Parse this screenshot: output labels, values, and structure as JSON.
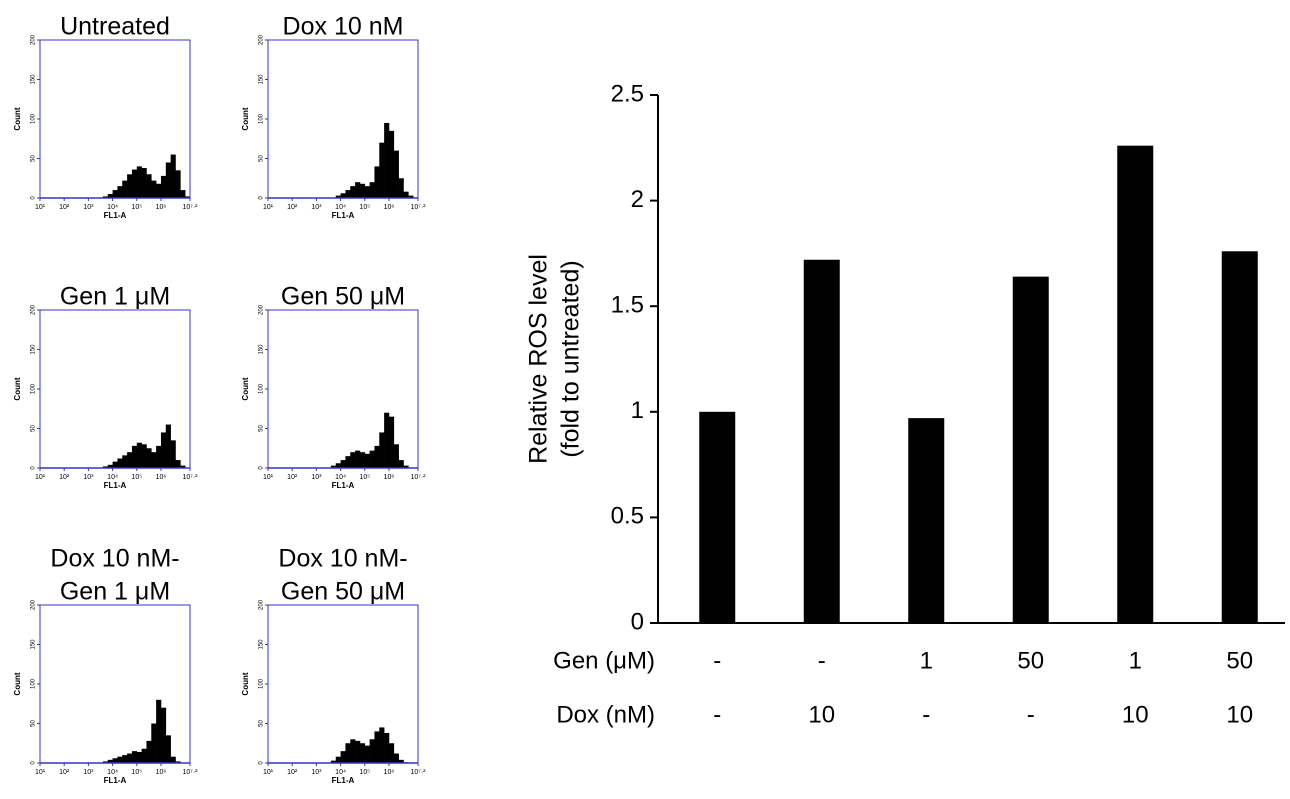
{
  "chart_data": [
    {
      "type": "histogram",
      "title": [
        "Untreated"
      ],
      "xlabel": "FL1-A",
      "ylabel": "Count",
      "bins": [
        1,
        1.2,
        1.4,
        1.6,
        1.8,
        2,
        2.2,
        2.4,
        2.6,
        2.8,
        3,
        3.2,
        3.4,
        3.6,
        3.8,
        4,
        4.2,
        4.4,
        4.6,
        4.8,
        5,
        5.2,
        5.4,
        5.6,
        5.8,
        6,
        6.2,
        6.4,
        6.6,
        6.8,
        7,
        7.2
      ],
      "values": [
        0,
        0,
        0,
        0,
        0,
        0,
        0,
        0,
        0,
        0,
        0,
        0,
        0,
        2,
        5,
        10,
        15,
        22,
        30,
        36,
        40,
        38,
        30,
        22,
        18,
        28,
        45,
        55,
        35,
        10,
        2
      ],
      "color": "#000000",
      "axis_color": "#3333cc",
      "xlim": [
        1,
        7.2
      ],
      "ylim": [
        0,
        200
      ],
      "yticks": [
        0,
        50,
        100,
        150,
        200
      ],
      "xticks": [
        {
          "value": 1,
          "label": "10¹"
        },
        {
          "value": 2,
          "label": "10²"
        },
        {
          "value": 3,
          "label": "10³"
        },
        {
          "value": 4,
          "label": "10⁴"
        },
        {
          "value": 5,
          "label": "10⁵"
        },
        {
          "value": 6,
          "label": "10⁶"
        },
        {
          "value": 7.2,
          "label": "10⁷·²"
        }
      ]
    },
    {
      "type": "histogram",
      "title": [
        "Dox 10 nM"
      ],
      "xlabel": "FL1-A",
      "ylabel": "Count",
      "bins": [
        1,
        1.2,
        1.4,
        1.6,
        1.8,
        2,
        2.2,
        2.4,
        2.6,
        2.8,
        3,
        3.2,
        3.4,
        3.6,
        3.8,
        4,
        4.2,
        4.4,
        4.6,
        4.8,
        5,
        5.2,
        5.4,
        5.6,
        5.8,
        6,
        6.2,
        6.4,
        6.6,
        6.8,
        7,
        7.2
      ],
      "values": [
        0,
        0,
        0,
        0,
        0,
        0,
        0,
        0,
        0,
        0,
        0,
        0,
        0,
        0,
        3,
        6,
        10,
        15,
        20,
        18,
        15,
        20,
        40,
        70,
        95,
        85,
        60,
        25,
        8,
        3,
        0
      ],
      "color": "#000000",
      "axis_color": "#3333cc",
      "xlim": [
        1,
        7.2
      ],
      "ylim": [
        0,
        200
      ],
      "yticks": [
        0,
        50,
        100,
        150,
        200
      ],
      "xticks": [
        {
          "value": 1,
          "label": "10¹"
        },
        {
          "value": 2,
          "label": "10²"
        },
        {
          "value": 3,
          "label": "10³"
        },
        {
          "value": 4,
          "label": "10⁴"
        },
        {
          "value": 5,
          "label": "10⁵"
        },
        {
          "value": 6,
          "label": "10⁶"
        },
        {
          "value": 7.2,
          "label": "10⁷·²"
        }
      ]
    },
    {
      "type": "histogram",
      "title": [
        "Gen 1 μM"
      ],
      "xlabel": "FL1-A",
      "ylabel": "Count",
      "bins": [
        1,
        1.2,
        1.4,
        1.6,
        1.8,
        2,
        2.2,
        2.4,
        2.6,
        2.8,
        3,
        3.2,
        3.4,
        3.6,
        3.8,
        4,
        4.2,
        4.4,
        4.6,
        4.8,
        5,
        5.2,
        5.4,
        5.6,
        5.8,
        6,
        6.2,
        6.4,
        6.6,
        6.8,
        7,
        7.2
      ],
      "values": [
        0,
        0,
        0,
        0,
        0,
        0,
        0,
        0,
        0,
        0,
        0,
        0,
        0,
        2,
        4,
        8,
        12,
        16,
        20,
        28,
        32,
        30,
        25,
        20,
        28,
        45,
        55,
        35,
        10,
        3,
        0
      ],
      "color": "#000000",
      "axis_color": "#3333cc",
      "xlim": [
        1,
        7.2
      ],
      "ylim": [
        0,
        200
      ],
      "yticks": [
        0,
        50,
        100,
        150,
        200
      ],
      "xticks": [
        {
          "value": 1,
          "label": "10¹"
        },
        {
          "value": 2,
          "label": "10²"
        },
        {
          "value": 3,
          "label": "10³"
        },
        {
          "value": 4,
          "label": "10⁴"
        },
        {
          "value": 5,
          "label": "10⁵"
        },
        {
          "value": 6,
          "label": "10⁶"
        },
        {
          "value": 7.2,
          "label": "10⁷·²"
        }
      ]
    },
    {
      "type": "histogram",
      "title": [
        "Gen 50 μM"
      ],
      "xlabel": "FL1-A",
      "ylabel": "Count",
      "bins": [
        1,
        1.2,
        1.4,
        1.6,
        1.8,
        2,
        2.2,
        2.4,
        2.6,
        2.8,
        3,
        3.2,
        3.4,
        3.6,
        3.8,
        4,
        4.2,
        4.4,
        4.6,
        4.8,
        5,
        5.2,
        5.4,
        5.6,
        5.8,
        6,
        6.2,
        6.4,
        6.6,
        6.8,
        7,
        7.2
      ],
      "values": [
        0,
        0,
        0,
        0,
        0,
        0,
        0,
        0,
        0,
        0,
        0,
        0,
        0,
        3,
        6,
        10,
        15,
        20,
        22,
        20,
        18,
        22,
        28,
        45,
        70,
        65,
        30,
        10,
        3,
        0,
        0
      ],
      "color": "#000000",
      "axis_color": "#3333cc",
      "xlim": [
        1,
        7.2
      ],
      "ylim": [
        0,
        200
      ],
      "yticks": [
        0,
        50,
        100,
        150,
        200
      ],
      "xticks": [
        {
          "value": 1,
          "label": "10¹"
        },
        {
          "value": 2,
          "label": "10²"
        },
        {
          "value": 3,
          "label": "10³"
        },
        {
          "value": 4,
          "label": "10⁴"
        },
        {
          "value": 5,
          "label": "10⁵"
        },
        {
          "value": 6,
          "label": "10⁶"
        },
        {
          "value": 7.2,
          "label": "10⁷·²"
        }
      ]
    },
    {
      "type": "histogram",
      "title": [
        "Dox 10 nM-",
        "Gen 1 μM"
      ],
      "xlabel": "FL1-A",
      "ylabel": "Count",
      "bins": [
        1,
        1.2,
        1.4,
        1.6,
        1.8,
        2,
        2.2,
        2.4,
        2.6,
        2.8,
        3,
        3.2,
        3.4,
        3.6,
        3.8,
        4,
        4.2,
        4.4,
        4.6,
        4.8,
        5,
        5.2,
        5.4,
        5.6,
        5.8,
        6,
        6.2,
        6.4,
        6.6,
        6.8,
        7,
        7.2
      ],
      "values": [
        0,
        0,
        0,
        0,
        0,
        0,
        0,
        0,
        0,
        0,
        0,
        0,
        0,
        2,
        4,
        6,
        8,
        10,
        12,
        15,
        14,
        18,
        28,
        50,
        80,
        70,
        35,
        8,
        2,
        0,
        0
      ],
      "color": "#000000",
      "axis_color": "#3333cc",
      "xlim": [
        1,
        7.2
      ],
      "ylim": [
        0,
        200
      ],
      "yticks": [
        0,
        50,
        100,
        150,
        200
      ],
      "xticks": [
        {
          "value": 1,
          "label": "10¹"
        },
        {
          "value": 2,
          "label": "10²"
        },
        {
          "value": 3,
          "label": "10³"
        },
        {
          "value": 4,
          "label": "10⁴"
        },
        {
          "value": 5,
          "label": "10⁵"
        },
        {
          "value": 6,
          "label": "10⁶"
        },
        {
          "value": 7.2,
          "label": "10⁷·²"
        }
      ]
    },
    {
      "type": "histogram",
      "title": [
        "Dox 10 nM-",
        "Gen 50 μM"
      ],
      "xlabel": "FL1-A",
      "ylabel": "Count",
      "bins": [
        1,
        1.2,
        1.4,
        1.6,
        1.8,
        2,
        2.2,
        2.4,
        2.6,
        2.8,
        3,
        3.2,
        3.4,
        3.6,
        3.8,
        4,
        4.2,
        4.4,
        4.6,
        4.8,
        5,
        5.2,
        5.4,
        5.6,
        5.8,
        6,
        6.2,
        6.4,
        6.6,
        6.8,
        7,
        7.2
      ],
      "values": [
        0,
        0,
        0,
        0,
        0,
        0,
        0,
        0,
        0,
        0,
        0,
        0,
        0,
        3,
        8,
        15,
        25,
        30,
        28,
        25,
        22,
        30,
        40,
        45,
        38,
        25,
        12,
        4,
        1,
        0,
        0
      ],
      "color": "#000000",
      "axis_color": "#3333cc",
      "xlim": [
        1,
        7.2
      ],
      "ylim": [
        0,
        200
      ],
      "yticks": [
        0,
        50,
        100,
        150,
        200
      ],
      "xticks": [
        {
          "value": 1,
          "label": "10¹"
        },
        {
          "value": 2,
          "label": "10²"
        },
        {
          "value": 3,
          "label": "10³"
        },
        {
          "value": 4,
          "label": "10⁴"
        },
        {
          "value": 5,
          "label": "10⁵"
        },
        {
          "value": 6,
          "label": "10⁶"
        },
        {
          "value": 7.2,
          "label": "10⁷·²"
        }
      ]
    },
    {
      "type": "bar",
      "ylabel": [
        "Relative ROS level",
        "(fold to untreated)"
      ],
      "values": [
        1.0,
        1.72,
        0.97,
        1.64,
        2.26,
        1.76
      ],
      "color": "#000000",
      "ylim": [
        0,
        2.5
      ],
      "yticks": [
        0,
        0.5,
        1,
        1.5,
        2,
        2.5
      ],
      "rows": [
        {
          "label": "Gen (μM)",
          "cells": [
            "-",
            "-",
            "1",
            "50",
            "1",
            "50"
          ]
        },
        {
          "label": "Dox (nM)",
          "cells": [
            "-",
            "10",
            "-",
            "-",
            "10",
            "10"
          ]
        }
      ]
    }
  ]
}
